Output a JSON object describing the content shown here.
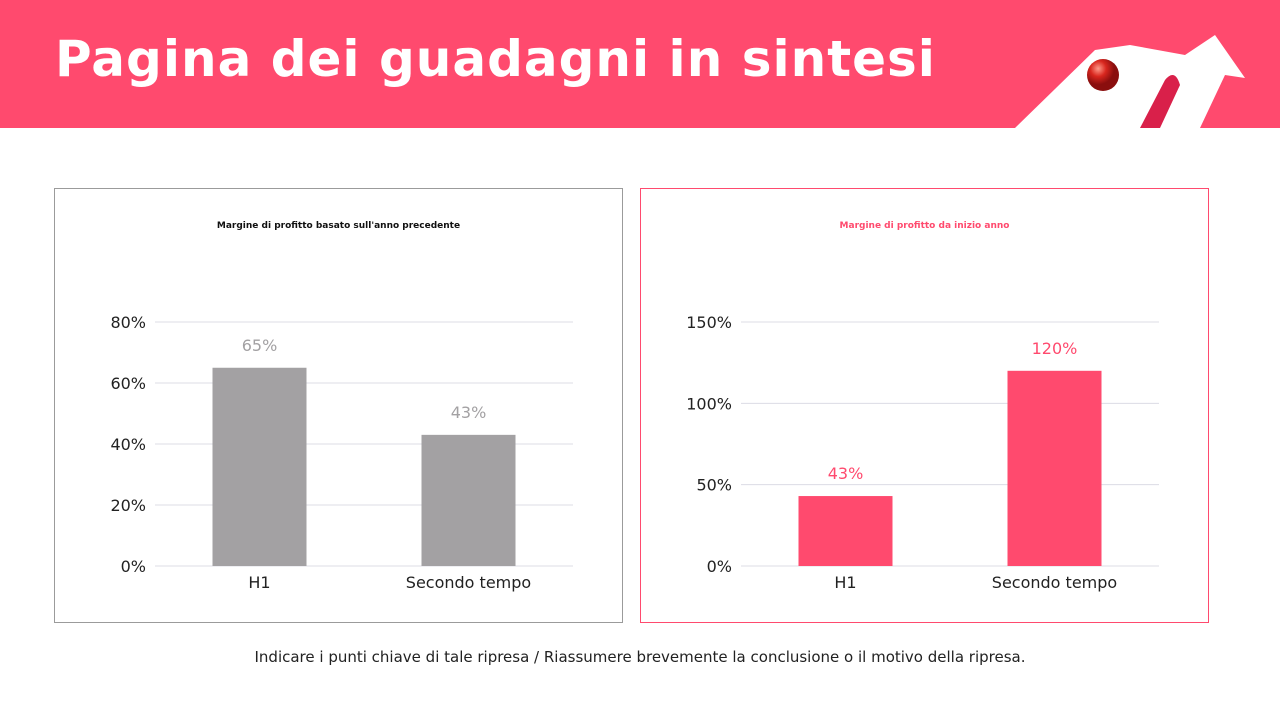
{
  "header": {
    "title": "Pagina dei guadagni in sintesi"
  },
  "chart_data": [
    {
      "type": "bar",
      "title": "Margine di profitto basato sull'anno precedente",
      "categories": [
        "H1",
        "Secondo tempo"
      ],
      "values": [
        65,
        43
      ],
      "data_labels": [
        "65%",
        "43%"
      ],
      "ylim": [
        0,
        80
      ],
      "yticks": [
        "0%",
        "20%",
        "40%",
        "60%",
        "80%"
      ],
      "ytick_values": [
        0,
        20,
        40,
        60,
        80
      ],
      "grid": true,
      "bar_color": "#A3A1A3",
      "title_color": "#111111",
      "label_color": "#A3A1A3"
    },
    {
      "type": "bar",
      "title": "Margine di profitto da inizio anno",
      "categories": [
        "H1",
        "Secondo tempo"
      ],
      "values": [
        43,
        120
      ],
      "data_labels": [
        "43%",
        "120%"
      ],
      "ylim": [
        0,
        150
      ],
      "yticks": [
        "0%",
        "50%",
        "100%",
        "150%"
      ],
      "ytick_values": [
        0,
        50,
        100,
        150
      ],
      "grid": true,
      "bar_color": "#FF4A6E",
      "title_color": "#FF4A6E",
      "label_color": "#FF4A6E"
    }
  ],
  "footer": {
    "text": "Indicare i punti chiave di tale ripresa / Riassumere brevemente la conclusione o il motivo della ripresa."
  }
}
